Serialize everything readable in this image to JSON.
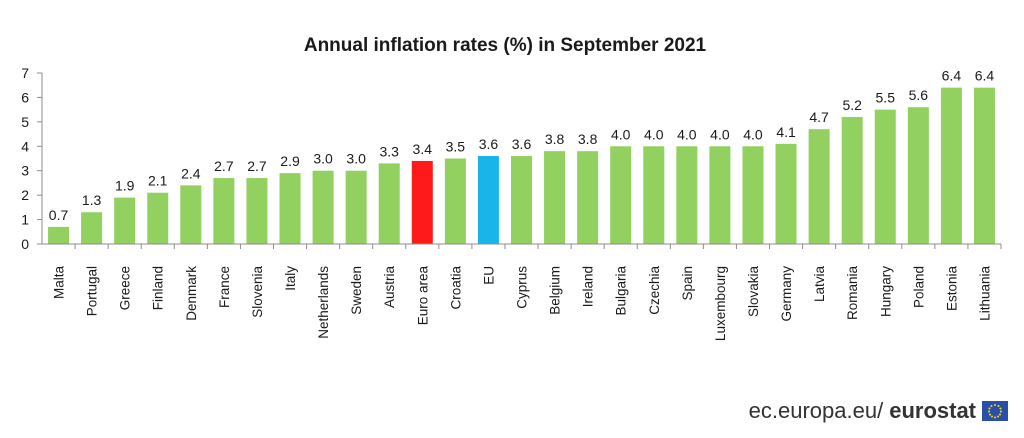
{
  "chart_data": {
    "type": "bar",
    "title": "Annual inflation rates (%) in September 2021",
    "xlabel": "",
    "ylabel": "",
    "ylim": [
      0,
      7
    ],
    "yticks": [
      0,
      1,
      2,
      3,
      4,
      5,
      6,
      7
    ],
    "grid": false,
    "categories": [
      "Malta",
      "Portugal",
      "Greece",
      "Finland",
      "Denmark",
      "France",
      "Slovenia",
      "Italy",
      "Netherlands",
      "Sweden",
      "Austria",
      "Euro area",
      "Croatia",
      "EU",
      "Cyprus",
      "Belgium",
      "Ireland",
      "Bulgaria",
      "Czechia",
      "Spain",
      "Luxembourg",
      "Slovakia",
      "Germany",
      "Latvia",
      "Romania",
      "Hungary",
      "Poland",
      "Estonia",
      "Lithuania"
    ],
    "values": [
      0.7,
      1.3,
      1.9,
      2.1,
      2.4,
      2.7,
      2.7,
      2.9,
      3.0,
      3.0,
      3.3,
      3.4,
      3.5,
      3.6,
      3.6,
      3.8,
      3.8,
      4.0,
      4.0,
      4.0,
      4.0,
      4.0,
      4.1,
      4.7,
      5.2,
      5.5,
      5.6,
      6.4,
      6.4
    ],
    "value_labels": [
      "0.7",
      "1.3",
      "1.9",
      "2.1",
      "2.4",
      "2.7",
      "2.7",
      "2.9",
      "3.0",
      "3.0",
      "3.3",
      "3.4",
      "3.5",
      "3.6",
      "3.6",
      "3.8",
      "3.8",
      "4.0",
      "4.0",
      "4.0",
      "4.0",
      "4.0",
      "4.1",
      "4.7",
      "5.2",
      "5.5",
      "5.6",
      "6.4",
      "6.4"
    ],
    "colors": {
      "default": "#92d060",
      "Euro area": "#ff1a1a",
      "EU": "#19b4ea"
    }
  },
  "footer": {
    "domain": "ec.europa.eu/",
    "brand": "eurostat"
  }
}
